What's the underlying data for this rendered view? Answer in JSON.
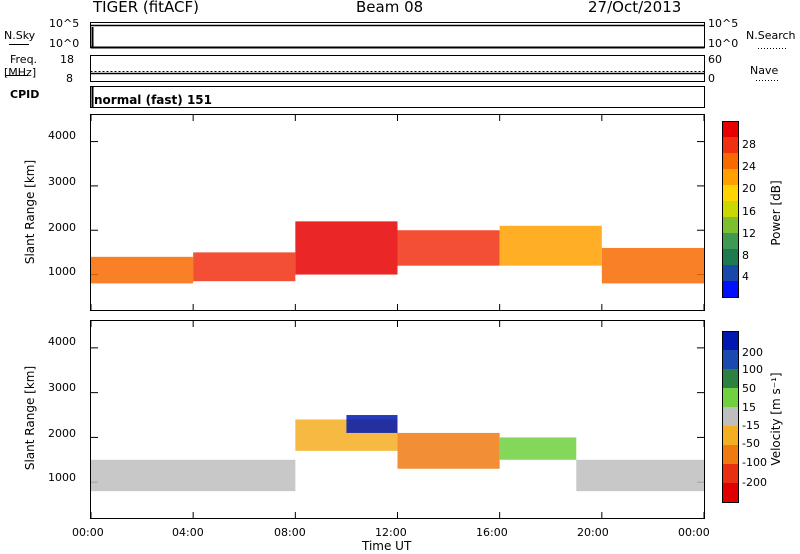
{
  "header": {
    "title": "TIGER (fitACF)",
    "beam": "Beam 08",
    "date": "27/Oct/2013"
  },
  "panels": {
    "nsky": {
      "label": "N.Sky",
      "ticks": [
        "10^5",
        "10^0"
      ]
    },
    "nsearch": {
      "label": "N.Search",
      "ticks": [
        "10^5",
        "10^0"
      ]
    },
    "freq": {
      "label": "Freq.",
      "unit": "[MHz]",
      "ticks": [
        "18",
        "8"
      ]
    },
    "nave": {
      "label": "Nave",
      "ticks": [
        "60",
        "0"
      ]
    },
    "cpid": {
      "label": "CPID",
      "value": "normal (fast) 151"
    }
  },
  "colorbars": {
    "power": {
      "label": "Power [dB]",
      "ticks": [
        "28",
        "24",
        "20",
        "16",
        "12",
        "8",
        "4"
      ],
      "colors": [
        "#e80000",
        "#f03010",
        "#f86a00",
        "#ffa000",
        "#ffd400",
        "#c8d800",
        "#7cc030",
        "#3e9a50",
        "#1f7a50",
        "#1848a8",
        "#0010ff"
      ]
    },
    "velocity": {
      "label": "Velocity [m s⁻¹]",
      "ticks": [
        "200",
        "100",
        "50",
        "15",
        "-15",
        "-50",
        "-100",
        "-200"
      ],
      "colors": [
        "#0018b0",
        "#1a4ab0",
        "#2c8040",
        "#70d040",
        "#bebebe",
        "#f4ae22",
        "#f07a12",
        "#e83010",
        "#e00000"
      ]
    }
  },
  "chart_data": [
    {
      "type": "heatmap",
      "title": "Power",
      "xlabel": "Time UT",
      "ylabel": "Slant Range [km]",
      "x_ticks": [
        "00:00",
        "04:00",
        "08:00",
        "12:00",
        "16:00",
        "20:00",
        "00:00"
      ],
      "xlim": [
        0,
        24
      ],
      "y_ticks": [
        "1000",
        "2000",
        "3000",
        "4000"
      ],
      "ylim": [
        200,
        4600
      ],
      "colorbar": "Power [dB]",
      "regions": [
        {
          "t_start": 0,
          "t_end": 4,
          "range_km": [
            800,
            1400
          ],
          "power_db": 24
        },
        {
          "t_start": 4,
          "t_end": 8,
          "range_km": [
            850,
            1500
          ],
          "power_db": 26
        },
        {
          "t_start": 8,
          "t_end": 12,
          "range_km": [
            1000,
            2200
          ],
          "power_db": 28
        },
        {
          "t_start": 12,
          "t_end": 16,
          "range_km": [
            1200,
            2000
          ],
          "power_db": 26
        },
        {
          "t_start": 16,
          "t_end": 20,
          "range_km": [
            1200,
            2100
          ],
          "power_db": 20
        },
        {
          "t_start": 20,
          "t_end": 24,
          "range_km": [
            800,
            1600
          ],
          "power_db": 24
        }
      ]
    },
    {
      "type": "heatmap",
      "title": "Velocity",
      "xlabel": "Time UT",
      "ylabel": "Slant Range [km]",
      "x_ticks": [
        "00:00",
        "04:00",
        "08:00",
        "12:00",
        "16:00",
        "20:00",
        "00:00"
      ],
      "xlim": [
        0,
        24
      ],
      "y_ticks": [
        "1000",
        "2000",
        "3000",
        "4000"
      ],
      "ylim": [
        200,
        4600
      ],
      "colorbar": "Velocity [m s⁻¹]",
      "regions": [
        {
          "t_start": 0,
          "t_end": 8,
          "range_km": [
            800,
            1500
          ],
          "velocity_ms": 0
        },
        {
          "t_start": 8,
          "t_end": 12,
          "range_km": [
            1700,
            2400
          ],
          "velocity_ms": -50
        },
        {
          "t_start": 10,
          "t_end": 12,
          "range_km": [
            2100,
            2500
          ],
          "velocity_ms": 200
        },
        {
          "t_start": 12,
          "t_end": 16,
          "range_km": [
            1300,
            2100
          ],
          "velocity_ms": -60
        },
        {
          "t_start": 16,
          "t_end": 19,
          "range_km": [
            1500,
            2000
          ],
          "velocity_ms": 40
        },
        {
          "t_start": 19,
          "t_end": 24,
          "range_km": [
            800,
            1500
          ],
          "velocity_ms": 0
        }
      ]
    }
  ]
}
